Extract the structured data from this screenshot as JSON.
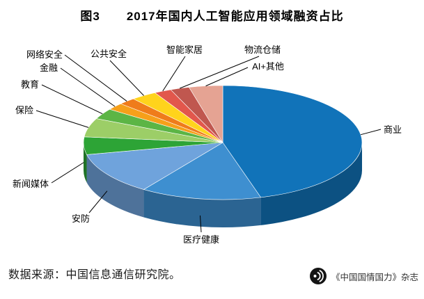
{
  "header": {
    "figure_label": "图3",
    "title": "2017年国内人工智能应用领域融资占比"
  },
  "chart_data": {
    "type": "pie",
    "three_d": true,
    "title": "图3 2017年国内人工智能应用领域融资占比",
    "legend_position": "callout-labels",
    "categories": [
      "商业",
      "医疗健康",
      "安防",
      "新闻媒体",
      "保险",
      "教育",
      "金融",
      "网络安全",
      "公共安全",
      "智能家居",
      "物流仓储",
      "AI+其他"
    ],
    "values": [
      45.6,
      14,
      12,
      5,
      5.3,
      3,
      2,
      2,
      3,
      2,
      2.2,
      3.9
    ],
    "values_are_estimates": true,
    "colors": [
      "#1173B9",
      "#3E8FD0",
      "#6FA3DC",
      "#2DA436",
      "#9CCE67",
      "#5CB545",
      "#F6A01A",
      "#EF7C1B",
      "#FFD31C",
      "#E2574C",
      "#C0574F",
      "#E5A393"
    ],
    "source": "数据来源：中国信息通信研究院。"
  },
  "footer": {
    "source_text": "数据来源：中国信息通信研究院。",
    "magazine_text": "《中国国情国力》杂志",
    "logo_icon": "broadcast-circle-icon"
  }
}
